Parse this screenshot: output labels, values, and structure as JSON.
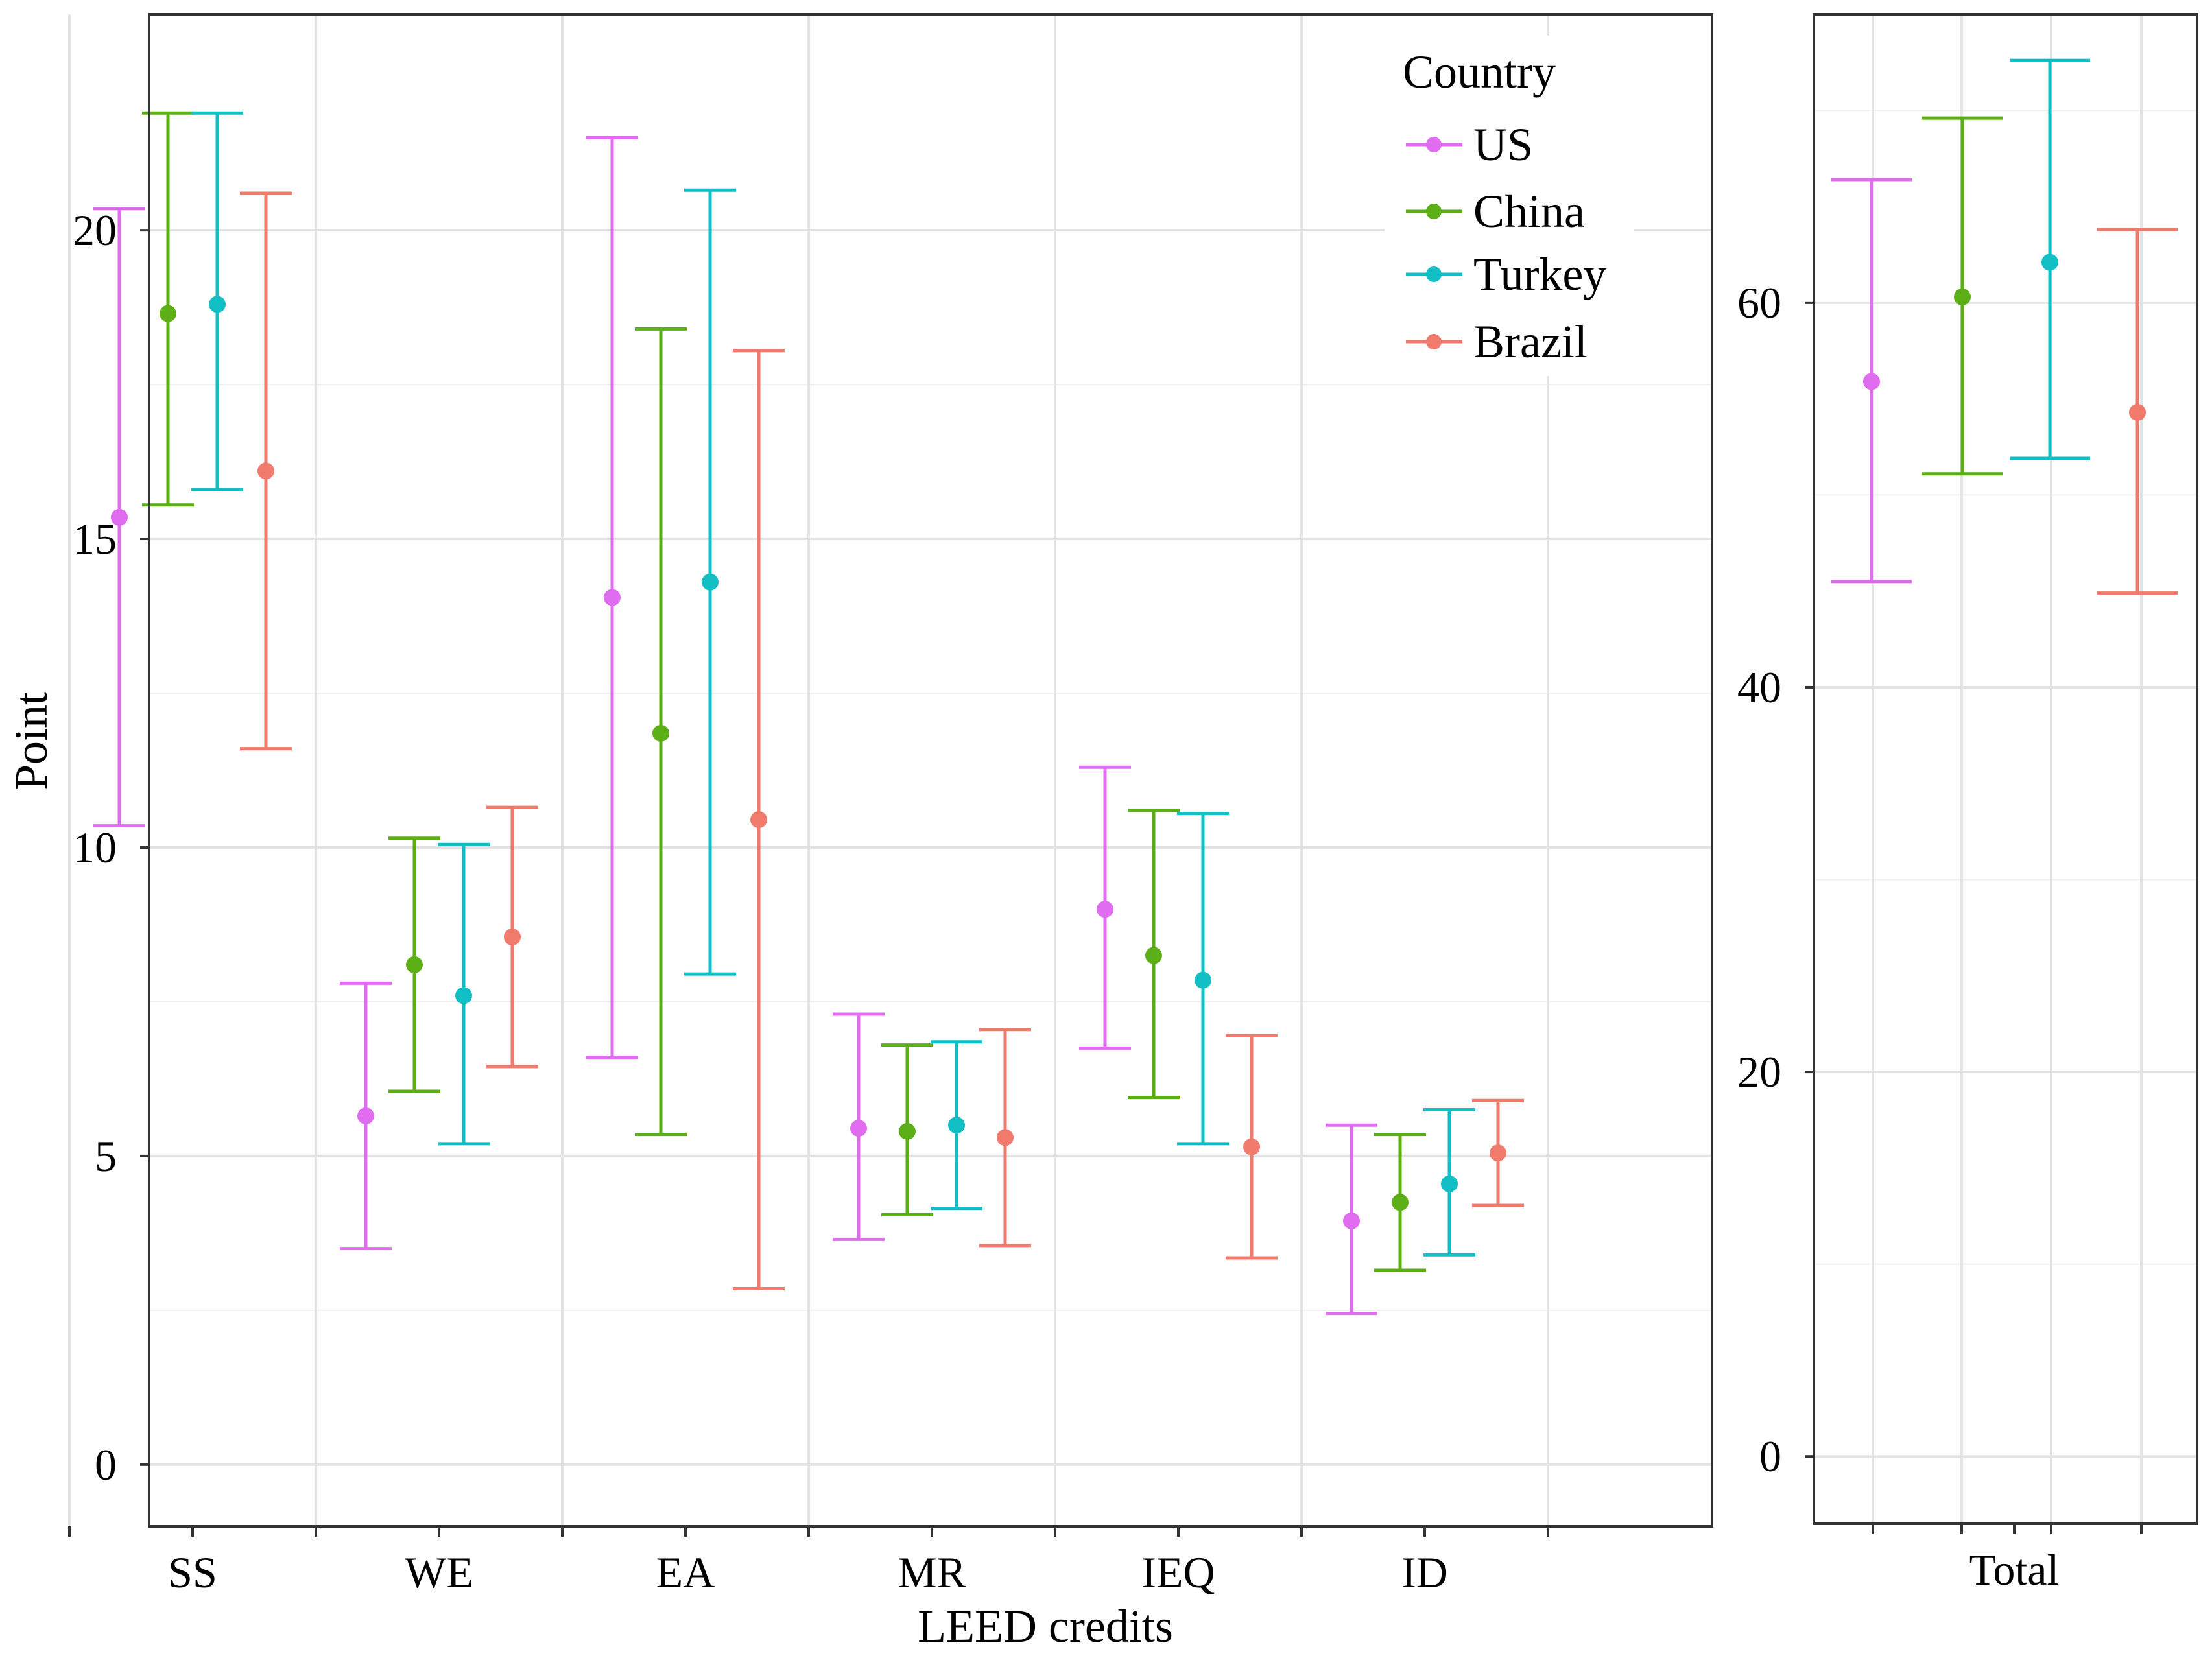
{
  "chart_data": [
    {
      "type": "errorbar",
      "panel": "left",
      "xlabel": "LEED credits",
      "ylabel": "Point",
      "categories": [
        "SS",
        "WE",
        "EA",
        "MR",
        "IEQ",
        "ID"
      ],
      "ylim": [
        -1,
        23.5
      ],
      "yticks": [
        0,
        5,
        10,
        15,
        20
      ],
      "yticklabels": [
        "0",
        "5",
        "10",
        "15",
        "20"
      ],
      "grid": true,
      "series": [
        {
          "name": "US",
          "color": "#E06DF0",
          "mean": [
            15.35,
            5.65,
            14.05,
            5.45,
            9.0,
            3.95
          ],
          "lower": [
            10.35,
            3.5,
            6.6,
            3.65,
            6.75,
            2.45
          ],
          "upper": [
            20.35,
            7.8,
            21.5,
            7.3,
            11.3,
            5.5
          ]
        },
        {
          "name": "China",
          "color": "#5BAE15",
          "mean": [
            18.65,
            8.1,
            11.85,
            5.4,
            8.25,
            4.25
          ],
          "lower": [
            15.55,
            6.05,
            5.35,
            4.05,
            5.95,
            3.15
          ],
          "upper": [
            21.9,
            10.15,
            18.4,
            6.8,
            10.6,
            5.35
          ]
        },
        {
          "name": "Turkey",
          "color": "#12BFC4",
          "mean": [
            18.8,
            7.6,
            14.3,
            5.5,
            7.85,
            4.55
          ],
          "lower": [
            15.8,
            5.2,
            7.95,
            4.15,
            5.2,
            3.4
          ],
          "upper": [
            21.9,
            10.05,
            20.65,
            6.85,
            10.55,
            5.75
          ]
        },
        {
          "name": "Brazil",
          "color": "#F07A6C",
          "mean": [
            16.1,
            8.55,
            10.45,
            5.3,
            5.15,
            5.05
          ],
          "lower": [
            11.6,
            6.45,
            2.85,
            3.55,
            3.35,
            4.2
          ],
          "upper": [
            20.6,
            10.65,
            18.05,
            7.05,
            6.95,
            5.9
          ]
        }
      ]
    },
    {
      "type": "errorbar",
      "panel": "right",
      "categories": [
        "Total"
      ],
      "ylim": [
        -3.5,
        75
      ],
      "yticks": [
        0,
        20,
        40,
        60
      ],
      "yticklabels": [
        "0",
        "20",
        "40",
        "60"
      ],
      "grid": true,
      "series": [
        {
          "name": "US",
          "color": "#E06DF0",
          "mean": [
            55.9
          ],
          "lower": [
            45.5
          ],
          "upper": [
            66.4
          ]
        },
        {
          "name": "China",
          "color": "#5BAE15",
          "mean": [
            60.3
          ],
          "lower": [
            51.1
          ],
          "upper": [
            69.6
          ]
        },
        {
          "name": "Turkey",
          "color": "#12BFC4",
          "mean": [
            62.1
          ],
          "lower": [
            51.9
          ],
          "upper": [
            72.6
          ]
        },
        {
          "name": "Brazil",
          "color": "#F07A6C",
          "mean": [
            54.3
          ],
          "lower": [
            44.9
          ],
          "upper": [
            63.8
          ]
        }
      ]
    }
  ],
  "legend": {
    "title": "Country",
    "position": "top-right of left panel",
    "entries": [
      "US",
      "China",
      "Turkey",
      "Brazil"
    ]
  }
}
